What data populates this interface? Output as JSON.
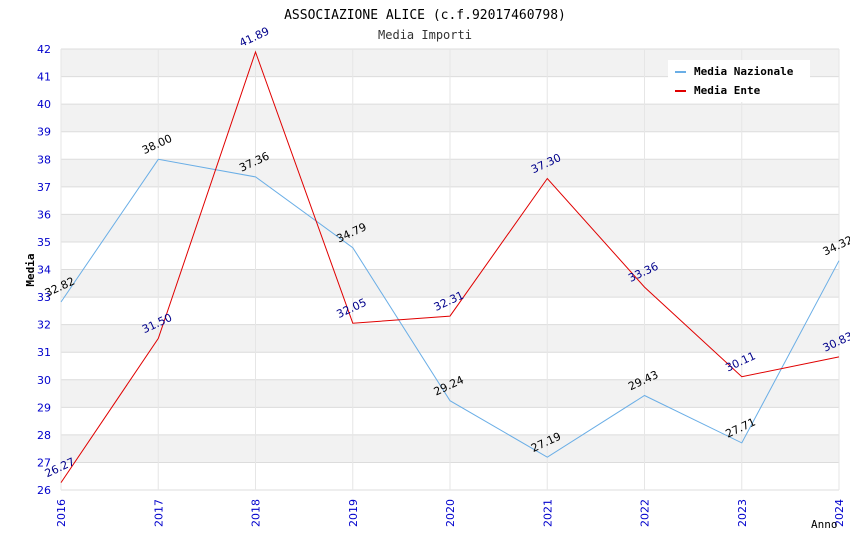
{
  "chart_data": {
    "type": "line",
    "title": "ASSOCIAZIONE ALICE (c.f.92017460798)",
    "subtitle": "Media Importi",
    "xlabel": "Anno",
    "ylabel": "Media",
    "x": [
      "2016",
      "2017",
      "2018",
      "2019",
      "2020",
      "2021",
      "2022",
      "2023",
      "2024"
    ],
    "ylim": [
      26,
      42
    ],
    "yticks": [
      "26",
      "27",
      "28",
      "29",
      "30",
      "31",
      "32",
      "33",
      "34",
      "35",
      "36",
      "37",
      "38",
      "39",
      "40",
      "41",
      "42"
    ],
    "grid": true,
    "legend_position": "top-right",
    "series": [
      {
        "name": "Media Nazionale",
        "color": "#6aaee6",
        "label_color": "#000000",
        "values": [
          32.82,
          38.0,
          37.36,
          34.79,
          29.24,
          27.19,
          29.43,
          27.71,
          34.32
        ],
        "labels": [
          "32.82",
          "38.00",
          "37.36",
          "34.79",
          "29.24",
          "27.19",
          "29.43",
          "27.71",
          "34.32"
        ]
      },
      {
        "name": "Media Ente",
        "color": "#e00000",
        "label_color": "#00008b",
        "values": [
          26.27,
          31.5,
          41.89,
          32.05,
          32.31,
          37.3,
          33.36,
          30.11,
          30.83
        ],
        "labels": [
          "26.27",
          "31.50",
          "41.89",
          "32.05",
          "32.31",
          "37.30",
          "33.36",
          "30.11",
          "30.83"
        ]
      }
    ]
  }
}
